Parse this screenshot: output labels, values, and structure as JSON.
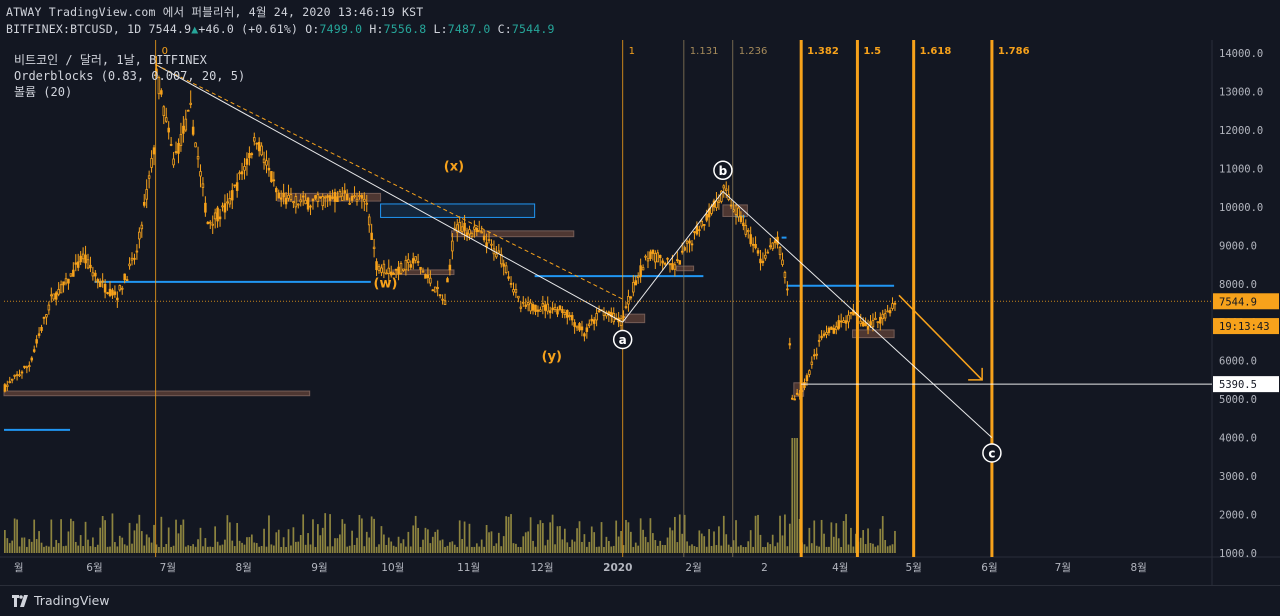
{
  "header": {
    "line1": "ATWAY TradingView.com 에서 퍼블리쉬, 4월 24, 2020 13:46:19 KST",
    "symbol": "BITFINEX:BTCUSD, 1D",
    "last": "7544.9",
    "change": "+46.0 (+0.61%)",
    "open_label": "O:",
    "open": "7499.0",
    "high_label": "H:",
    "high": "7556.8",
    "low_label": "L:",
    "low": "7487.0",
    "close_label": "C:",
    "close": "7544.9"
  },
  "legend": {
    "title": "비트코인 / 달러, 1날, BITFINEX",
    "indicator1": "Orderblocks (0.83, 0.007, 20, 5)",
    "indicator2": "볼륨 (20)"
  },
  "footer": {
    "brand": "TradingView"
  },
  "colors": {
    "background": "#131722",
    "candle": "#f7a21b",
    "fib_line": "#f7a21b",
    "orderblock_blue": "#2196f3",
    "orderblock_brown": "#5d4037",
    "volume": "#b7a94a",
    "price_label_bg": "#f7a21b"
  },
  "chart_data": {
    "type": "candlestick",
    "y_axis": {
      "range": [
        1000,
        14500
      ],
      "ticks": [
        "14000.0",
        "13000.0",
        "12000.0",
        "11000.0",
        "10000.0",
        "9000.0",
        "8000.0",
        "7000.0",
        "6000.0",
        "5000.0",
        "4000.0",
        "3000.0",
        "2000.0",
        "1000.0"
      ],
      "tick_values": [
        14000,
        13000,
        12000,
        11000,
        10000,
        9000,
        8000,
        7000,
        6000,
        5000,
        4000,
        3000,
        2000,
        1000
      ],
      "labels": [
        {
          "value": 7544.9,
          "text": "7544.9",
          "style": "last"
        },
        {
          "value": 6900,
          "text": "19:13:43",
          "style": "countdown"
        },
        {
          "value": 5390.5,
          "text": "5390.5",
          "style": "line"
        }
      ]
    },
    "x_axis": {
      "range": [
        "2019-04-25",
        "2020-08-31"
      ],
      "ticks": [
        {
          "date": "2019-05-01",
          "label": "월"
        },
        {
          "date": "2019-06-01",
          "label": "6월"
        },
        {
          "date": "2019-07-01",
          "label": "7월"
        },
        {
          "date": "2019-08-01",
          "label": "8월"
        },
        {
          "date": "2019-09-01",
          "label": "9월"
        },
        {
          "date": "2019-10-01",
          "label": "10월"
        },
        {
          "date": "2019-11-01",
          "label": "11월"
        },
        {
          "date": "2019-12-01",
          "label": "12월"
        },
        {
          "date": "2020-01-01",
          "label": "2020"
        },
        {
          "date": "2020-02-01",
          "label": "2월"
        },
        {
          "date": "2020-03-01",
          "label": "2"
        },
        {
          "date": "2020-04-01",
          "label": "4월"
        },
        {
          "date": "2020-05-01",
          "label": "5월"
        },
        {
          "date": "2020-06-01",
          "label": "6월"
        },
        {
          "date": "2020-07-01",
          "label": "7월"
        },
        {
          "date": "2020-08-01",
          "label": "8월"
        }
      ]
    },
    "price_path": [
      [
        "2019-04-25",
        5300
      ],
      [
        "2019-05-05",
        5900
      ],
      [
        "2019-05-14",
        7600
      ],
      [
        "2019-05-20",
        8000
      ],
      [
        "2019-05-27",
        8700
      ],
      [
        "2019-06-03",
        8000
      ],
      [
        "2019-06-10",
        7700
      ],
      [
        "2019-06-18",
        8800
      ],
      [
        "2019-06-25",
        11500
      ],
      [
        "2019-06-26",
        13500
      ],
      [
        "2019-07-03",
        11200
      ],
      [
        "2019-07-10",
        12500
      ],
      [
        "2019-07-17",
        9600
      ],
      [
        "2019-07-25",
        10000
      ],
      [
        "2019-08-06",
        11800
      ],
      [
        "2019-08-15",
        10200
      ],
      [
        "2019-08-28",
        10100
      ],
      [
        "2019-09-10",
        10300
      ],
      [
        "2019-09-20",
        10100
      ],
      [
        "2019-09-24",
        8500
      ],
      [
        "2019-10-01",
        8300
      ],
      [
        "2019-10-10",
        8600
      ],
      [
        "2019-10-22",
        7500
      ],
      [
        "2019-10-26",
        9500
      ],
      [
        "2019-11-05",
        9300
      ],
      [
        "2019-11-15",
        8600
      ],
      [
        "2019-11-22",
        7400
      ],
      [
        "2019-12-01",
        7400
      ],
      [
        "2019-12-10",
        7300
      ],
      [
        "2019-12-18",
        6700
      ],
      [
        "2019-12-25",
        7300
      ],
      [
        "2020-01-02",
        7000
      ],
      [
        "2020-01-08",
        8100
      ],
      [
        "2020-01-14",
        8800
      ],
      [
        "2020-01-24",
        8400
      ],
      [
        "2020-02-02",
        9400
      ],
      [
        "2020-02-13",
        10400
      ],
      [
        "2020-02-20",
        9700
      ],
      [
        "2020-02-28",
        8600
      ],
      [
        "2020-03-06",
        9100
      ],
      [
        "2020-03-10",
        7900
      ],
      [
        "2020-03-12",
        5000
      ],
      [
        "2020-03-16",
        5200
      ],
      [
        "2020-03-24",
        6600
      ],
      [
        "2020-04-06",
        7200
      ],
      [
        "2020-04-12",
        6900
      ],
      [
        "2020-04-17",
        7100
      ],
      [
        "2020-04-24",
        7544.9
      ]
    ],
    "orderblocks": [
      {
        "color": "blue",
        "from": "2019-04-25",
        "to": "2019-05-22",
        "price": 4200,
        "kind": "line"
      },
      {
        "color": "brown",
        "from": "2019-04-25",
        "to": "2019-08-28",
        "price": 5150,
        "kind": "box",
        "height": 120
      },
      {
        "color": "blue",
        "from": "2019-06-01",
        "to": "2019-09-22",
        "price": 8050,
        "kind": "line"
      },
      {
        "color": "brown",
        "from": "2019-08-15",
        "to": "2019-09-26",
        "price": 10250,
        "kind": "box",
        "height": 200
      },
      {
        "color": "blue",
        "from": "2019-09-26",
        "to": "2019-11-28",
        "price": 9900,
        "kind": "box",
        "height": 350
      },
      {
        "color": "brown",
        "from": "2019-10-25",
        "to": "2019-12-14",
        "price": 9300,
        "kind": "box",
        "height": 150
      },
      {
        "color": "brown",
        "from": "2019-10-01",
        "to": "2019-10-26",
        "price": 8300,
        "kind": "box",
        "height": 120
      },
      {
        "color": "blue",
        "from": "2019-11-28",
        "to": "2020-02-05",
        "price": 8200,
        "kind": "line"
      },
      {
        "color": "brown",
        "from": "2020-01-04",
        "to": "2020-01-12",
        "price": 7100,
        "kind": "box",
        "height": 220
      },
      {
        "color": "brown",
        "from": "2020-01-25",
        "to": "2020-02-01",
        "price": 8400,
        "kind": "box",
        "height": 120
      },
      {
        "color": "brown",
        "from": "2020-02-13",
        "to": "2020-02-23",
        "price": 9900,
        "kind": "box",
        "height": 300
      },
      {
        "color": "blue",
        "from": "2020-02-18",
        "to": "2020-02-22",
        "price": 9750,
        "kind": "line"
      },
      {
        "color": "blue",
        "from": "2020-03-08",
        "to": "2020-03-10",
        "price": 9200,
        "kind": "line"
      },
      {
        "color": "blue",
        "from": "2020-03-10",
        "to": "2020-04-23",
        "price": 7950,
        "kind": "line"
      },
      {
        "color": "brown",
        "from": "2020-03-13",
        "to": "2020-03-17",
        "price": 5250,
        "kind": "box",
        "height": 350
      },
      {
        "color": "brown",
        "from": "2020-04-06",
        "to": "2020-04-23",
        "price": 6700,
        "kind": "box",
        "height": 200
      }
    ],
    "fib_time_lines": [
      {
        "label": "0",
        "date": "2019-06-26",
        "weight": "thin"
      },
      {
        "label": "1",
        "date": "2020-01-03",
        "weight": "thin"
      },
      {
        "label": "1.131",
        "date": "2020-01-28",
        "weight": "thin"
      },
      {
        "label": "1.236",
        "date": "2020-02-17",
        "weight": "thin"
      },
      {
        "label": "1.382",
        "date": "2020-03-16",
        "weight": "thick"
      },
      {
        "label": "1.5",
        "date": "2020-04-08",
        "weight": "thick"
      },
      {
        "label": "1.618",
        "date": "2020-05-01",
        "weight": "thick"
      },
      {
        "label": "1.786",
        "date": "2020-06-02",
        "weight": "thick"
      }
    ],
    "trendlines": [
      {
        "from": [
          "2019-06-26",
          13700
        ],
        "to": [
          "2020-01-03",
          7000
        ],
        "style": "solid"
      },
      {
        "from": [
          "2019-06-26",
          13700
        ],
        "to": [
          "2020-01-03",
          7600
        ],
        "style": "dashed"
      },
      {
        "from": [
          "2020-01-03",
          7000
        ],
        "to": [
          "2020-02-13",
          10400
        ],
        "style": "solid"
      },
      {
        "from": [
          "2020-02-13",
          10400
        ],
        "to": [
          "2020-06-02",
          4000
        ],
        "style": "solid"
      },
      {
        "from": [
          "2020-03-16",
          5390.5
        ],
        "to": [
          "2020-08-31",
          5390.5
        ],
        "style": "horizontal"
      }
    ],
    "arrow": {
      "from": [
        "2020-04-25",
        7700
      ],
      "to": [
        "2020-05-29",
        5500
      ]
    },
    "wave_labels": [
      {
        "text": "(w)",
        "date": "2019-09-28",
        "price": 7900,
        "style": "text"
      },
      {
        "text": "(x)",
        "date": "2019-10-26",
        "price": 10950,
        "style": "text"
      },
      {
        "text": "(y)",
        "date": "2019-12-05",
        "price": 6000,
        "style": "text"
      },
      {
        "text": "a",
        "date": "2020-01-03",
        "price": 6550,
        "style": "circle"
      },
      {
        "text": "b",
        "date": "2020-02-13",
        "price": 10950,
        "style": "circle"
      },
      {
        "text": "c",
        "date": "2020-06-02",
        "price": 3600,
        "style": "circle"
      }
    ]
  }
}
